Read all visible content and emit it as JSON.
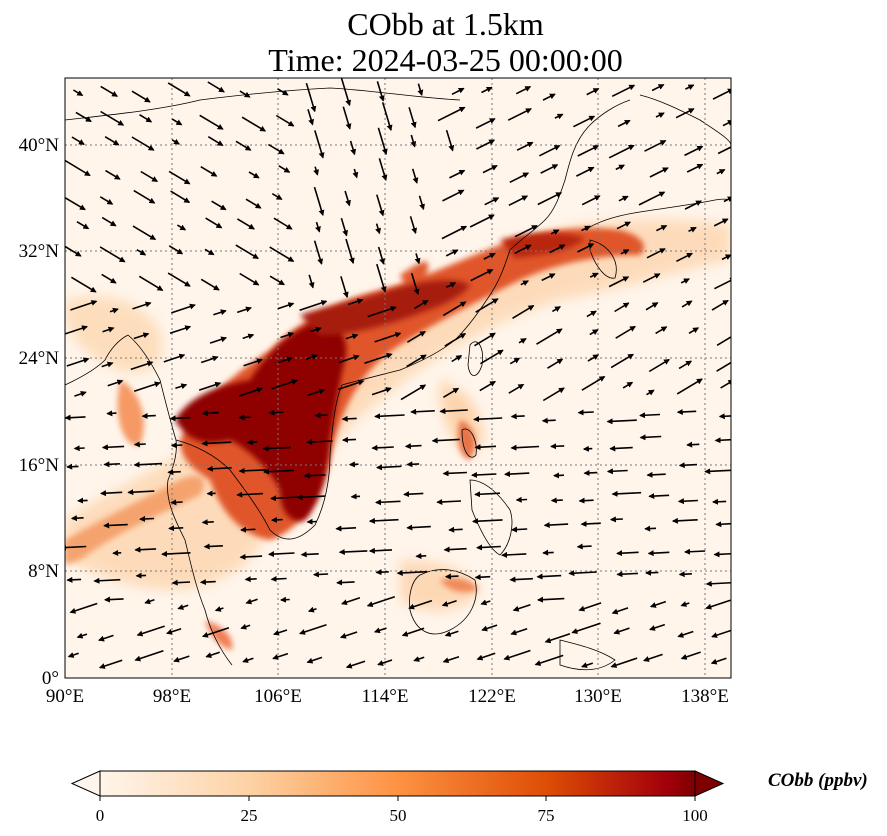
{
  "title": {
    "line1": "CObb at 1.5km",
    "line2": "Time: 2024-03-25 00:00:00"
  },
  "map": {
    "extent": {
      "lon_min": 90,
      "lon_max": 140,
      "lat_min": 0,
      "lat_max": 45
    },
    "x_ticks": [
      "90°E",
      "98°E",
      "106°E",
      "114°E",
      "122°E",
      "130°E",
      "138°E"
    ],
    "y_ticks": [
      "0°",
      "8°N",
      "16°N",
      "24°N",
      "32°N",
      "40°N"
    ],
    "gridlines": true,
    "field_variable": "CObb",
    "wind_vectors": true
  },
  "colorbar": {
    "label": "CObb (ppbv)",
    "ticks": [
      "0",
      "25",
      "50",
      "75",
      "100"
    ],
    "range": [
      0,
      100
    ],
    "extend": "both",
    "colors": [
      "#fff5eb",
      "#fdd2a5",
      "#fd9243",
      "#de4e05",
      "#a3000b",
      "#7f0000"
    ]
  }
}
